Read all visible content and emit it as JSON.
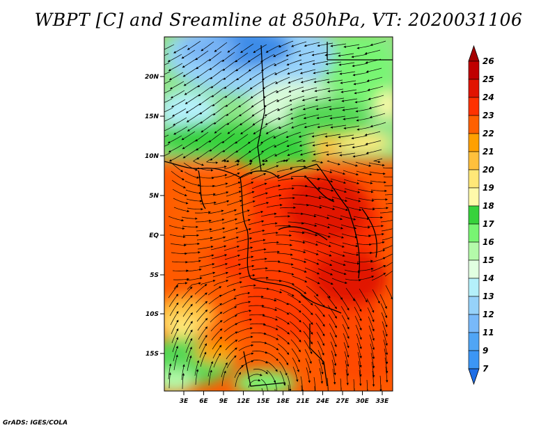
{
  "title": "WBPT [C] and Sreamline at 850hPa, VT: 2020031106",
  "credit": "GrADS: IGES/COLA",
  "map": {
    "lat_ticks": [
      "20N",
      "15N",
      "10N",
      "5N",
      "EQ",
      "5S",
      "10S",
      "15S"
    ],
    "lon_ticks": [
      "3E",
      "6E",
      "9E",
      "12E",
      "15E",
      "18E",
      "21E",
      "24E",
      "27E",
      "30E",
      "33E"
    ]
  },
  "colorbar": {
    "labels": [
      "7",
      "9",
      "11",
      "12",
      "13",
      "14",
      "15",
      "16",
      "17",
      "18",
      "19",
      "20",
      "21",
      "22",
      "23",
      "24",
      "25",
      "26"
    ],
    "colors": [
      "#1e6ee6",
      "#2882f0",
      "#3c96f5",
      "#50a5f5",
      "#78b9fa",
      "#96d2fa",
      "#b4f0fa",
      "#e1ffe1",
      "#b4faaa",
      "#78f573",
      "#37d23c",
      "#fffaaa",
      "#ffe878",
      "#ffc03c",
      "#ffa000",
      "#ff6000",
      "#ff3200",
      "#e11400",
      "#c00000",
      "#a50000"
    ]
  }
}
